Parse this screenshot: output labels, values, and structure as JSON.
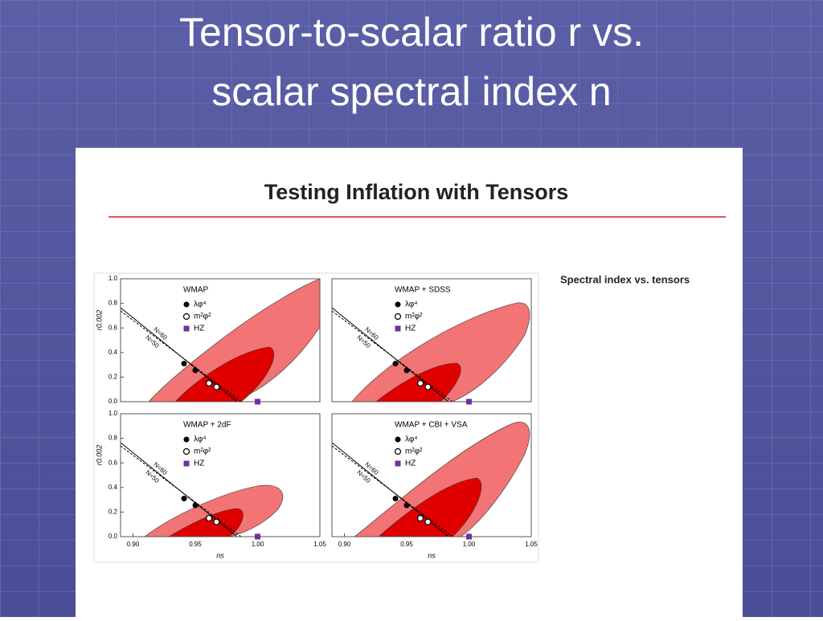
{
  "slide": {
    "title": [
      "Tensor-to-scalar ratio r vs.",
      "scalar spectral index n"
    ]
  },
  "figure": {
    "title": "Testing Inflation with Tensors",
    "caption": "Spectral index vs. tensors"
  },
  "chart_data": [
    {
      "type": "scatter",
      "title": "WMAP",
      "y_label": "r0.002",
      "series": [
        {
          "name": "λφ⁴",
          "color": "#000000",
          "marker": "filled",
          "x": [
            0.941,
            0.95
          ],
          "values": [
            0.31,
            0.255
          ]
        },
        {
          "name": "m²φ²",
          "color": "#ffffff",
          "marker": "open",
          "x": [
            0.961,
            0.967
          ],
          "values": [
            0.15,
            0.12
          ]
        },
        {
          "name": "HZ",
          "color": "#7030a0",
          "marker": "square",
          "x": [
            1.0
          ],
          "values": [
            0
          ]
        }
      ],
      "annotations": [
        "N=60",
        "N=50"
      ],
      "xlim": [
        0.89,
        1.05
      ],
      "ylim": [
        0,
        1.0
      ],
      "yticks": [
        {
          "value": 0,
          "label": "0.0"
        },
        0.2,
        0.4,
        0.6,
        0.8,
        {
          "value": 1,
          "label": "1.0"
        }
      ]
    },
    {
      "type": "scatter",
      "title": "WMAP + SDSS",
      "series": [
        {
          "name": "λφ⁴",
          "color": "#000000",
          "marker": "filled",
          "x": [
            0.941,
            0.95
          ],
          "values": [
            0.31,
            0.255
          ]
        },
        {
          "name": "m²φ²",
          "color": "#ffffff",
          "marker": "open",
          "x": [
            0.961,
            0.967
          ],
          "values": [
            0.15,
            0.12
          ]
        },
        {
          "name": "HZ",
          "color": "#7030a0",
          "marker": "square",
          "x": [
            1.0
          ],
          "values": [
            0
          ]
        }
      ],
      "annotations": [
        "N=60",
        "N=50"
      ],
      "xlim": [
        0.89,
        1.05
      ],
      "ylim": [
        0,
        1.0
      ]
    },
    {
      "type": "scatter",
      "title": "WMAP + 2dF",
      "x_label": "ns",
      "y_label": "r0.002",
      "series": [
        {
          "name": "λφ⁴",
          "color": "#000000",
          "marker": "filled",
          "x": [
            0.941,
            0.95
          ],
          "values": [
            0.31,
            0.255
          ]
        },
        {
          "name": "m²φ²",
          "color": "#ffffff",
          "marker": "open",
          "x": [
            0.961,
            0.967
          ],
          "values": [
            0.15,
            0.12
          ]
        },
        {
          "name": "HZ",
          "color": "#7030a0",
          "marker": "square",
          "x": [
            1.0
          ],
          "values": [
            0
          ]
        }
      ],
      "annotations": [
        "N=60",
        "N=50"
      ],
      "xlim": [
        0.89,
        1.05
      ],
      "ylim": [
        0,
        1.0
      ],
      "xticks": [
        {
          "value": 0.9,
          "label": "0.90"
        },
        0.95,
        {
          "value": 1,
          "label": "1.00"
        },
        1.05
      ],
      "yticks": [
        {
          "value": 0,
          "label": "0.0"
        },
        0.2,
        0.4,
        0.6,
        0.8,
        {
          "value": 1,
          "label": "1.0"
        }
      ]
    },
    {
      "type": "scatter",
      "title": "WMAP + CBI + VSA",
      "x_label": "ns",
      "series": [
        {
          "name": "λφ⁴",
          "color": "#000000",
          "marker": "filled",
          "x": [
            0.941,
            0.95
          ],
          "values": [
            0.31,
            0.255
          ]
        },
        {
          "name": "m²φ²",
          "color": "#ffffff",
          "marker": "open",
          "x": [
            0.961,
            0.967
          ],
          "values": [
            0.15,
            0.12
          ]
        },
        {
          "name": "HZ",
          "color": "#7030a0",
          "marker": "square",
          "x": [
            1.0
          ],
          "values": [
            0
          ]
        }
      ],
      "annotations": [
        "N=60",
        "N=50"
      ],
      "xlim": [
        0.89,
        1.05
      ],
      "ylim": [
        0,
        1.0
      ],
      "xticks": [
        {
          "value": 0.9,
          "label": "0.90"
        },
        0.95,
        {
          "value": 1,
          "label": "1.00"
        },
        1.05
      ]
    }
  ]
}
